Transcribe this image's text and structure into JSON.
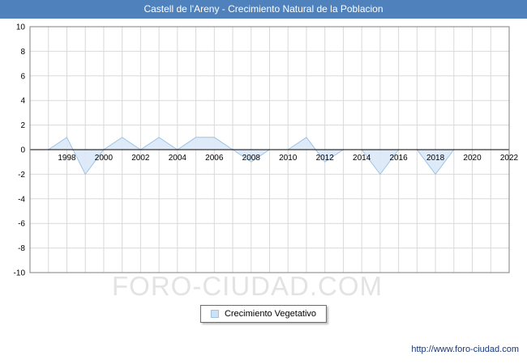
{
  "header": {
    "title": "Castell de l'Areny - Crecimiento Natural de la Poblacion",
    "bg_color": "#4f81bd",
    "text_color": "#ffffff"
  },
  "chart_data": {
    "type": "area",
    "title": "Castell de l'Areny - Crecimiento Natural de la Poblacion",
    "series": [
      {
        "name": "Crecimiento Vegetativo",
        "x": [
          1997,
          1998,
          1999,
          2000,
          2001,
          2002,
          2003,
          2004,
          2005,
          2006,
          2007,
          2008,
          2009,
          2010,
          2011,
          2012,
          2013,
          2014,
          2015,
          2016,
          2017,
          2018,
          2019
        ],
        "values": [
          0,
          1,
          -2,
          0,
          1,
          0,
          1,
          0,
          1,
          1,
          0,
          -1,
          0,
          0,
          1,
          -1,
          0,
          0,
          -2,
          0,
          0,
          -2,
          0
        ],
        "line_color": "#9dc3e6",
        "fill_color": "#dbe8f7"
      }
    ],
    "xlim": [
      1996,
      2022
    ],
    "ylim": [
      -10,
      10
    ],
    "x_ticks": [
      1998,
      2000,
      2002,
      2004,
      2006,
      2008,
      2010,
      2012,
      2014,
      2016,
      2018,
      2020,
      2022
    ],
    "y_ticks": [
      10,
      8,
      6,
      4,
      2,
      0,
      -2,
      -4,
      -6,
      -8,
      -10
    ],
    "grid": true,
    "grid_color": "#d9d9d9",
    "axis_color": "#000000",
    "border_color": "#7f7f7f",
    "legend_position": "bottom",
    "xlabel": "",
    "ylabel": ""
  },
  "legend": {
    "label": "Crecimiento Vegetativo",
    "marker_fill": "#cfe2f3",
    "marker_border": "#9dc3e6"
  },
  "watermark": "FORO-CIUDAD.COM",
  "footer": {
    "url": "http://www.foro-ciudad.com"
  }
}
